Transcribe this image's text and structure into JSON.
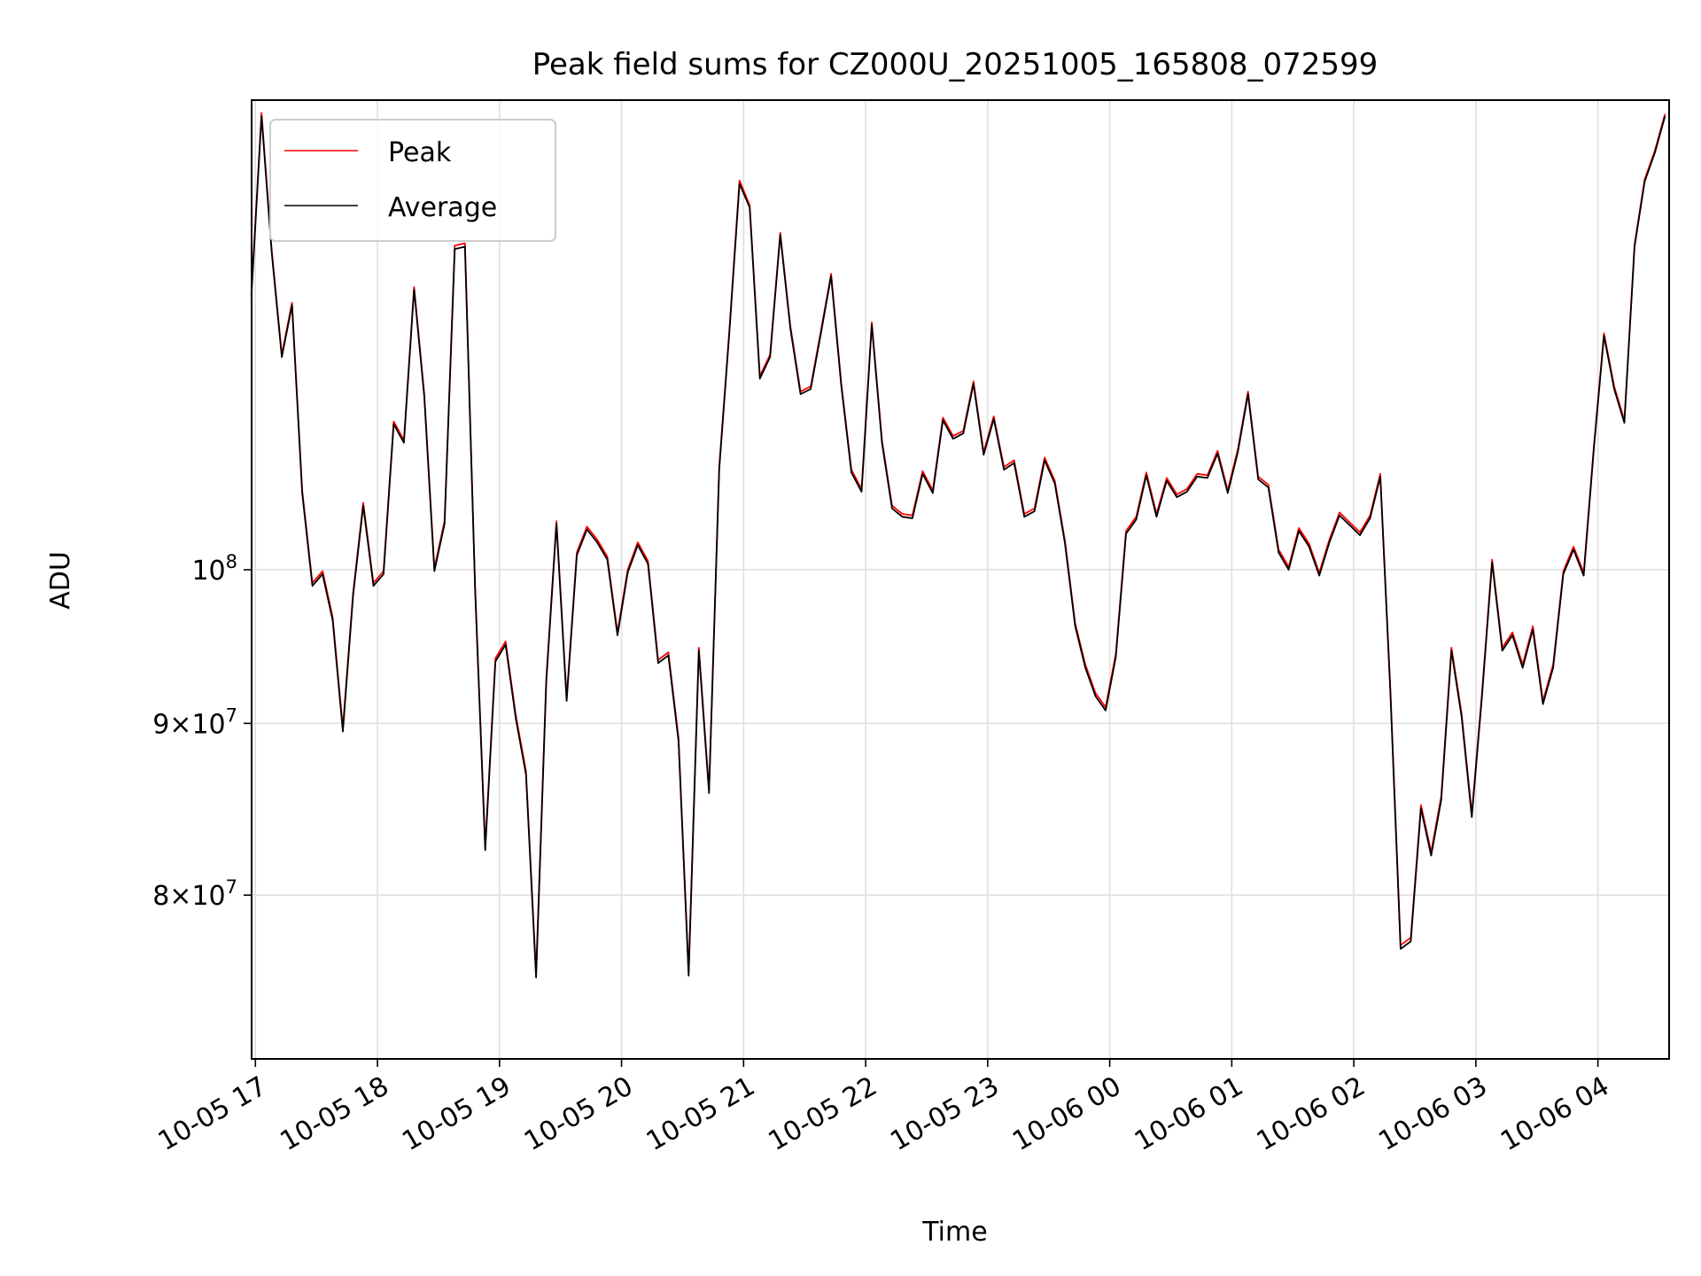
{
  "chart_data": {
    "type": "line",
    "title": "Peak field sums for CZ000U_20251005_165808_072599",
    "xlabel": "Time",
    "ylabel": "ADU",
    "yscale": "log",
    "ylim": [
      71500000,
      138000000
    ],
    "xlim": [
      "2025-10-05T16:58:08",
      "2025-10-06T04:35:00"
    ],
    "grid": true,
    "legend_position": "upper-left",
    "x_ticks": [
      {
        "label": "10-05 17",
        "t": "2025-10-05T17:00:00"
      },
      {
        "label": "10-05 18",
        "t": "2025-10-05T18:00:00"
      },
      {
        "label": "10-05 19",
        "t": "2025-10-05T19:00:00"
      },
      {
        "label": "10-05 20",
        "t": "2025-10-05T20:00:00"
      },
      {
        "label": "10-05 21",
        "t": "2025-10-05T21:00:00"
      },
      {
        "label": "10-05 22",
        "t": "2025-10-05T22:00:00"
      },
      {
        "label": "10-05 23",
        "t": "2025-10-05T23:00:00"
      },
      {
        "label": "10-06 00",
        "t": "2025-10-06T00:00:00"
      },
      {
        "label": "10-06 01",
        "t": "2025-10-06T01:00:00"
      },
      {
        "label": "10-06 02",
        "t": "2025-10-06T02:00:00"
      },
      {
        "label": "10-06 03",
        "t": "2025-10-06T03:00:00"
      },
      {
        "label": "10-06 04",
        "t": "2025-10-06T04:00:00"
      }
    ],
    "y_ticks": [
      {
        "value": 80000000,
        "mantissa": "8",
        "base": "10",
        "exp": "7"
      },
      {
        "value": 90000000,
        "mantissa": "9",
        "base": "10",
        "exp": "7"
      },
      {
        "value": 100000000,
        "mantissa": "",
        "base": "10",
        "exp": "8"
      }
    ],
    "series": [
      {
        "name": "Peak",
        "color": "#ff0000"
      },
      {
        "name": "Average",
        "color": "#000000"
      }
    ],
    "x": [
      "2025-10-05T16:58:00",
      "2025-10-05T17:03:00",
      "2025-10-05T17:08:00",
      "2025-10-05T17:13:00",
      "2025-10-05T17:18:00",
      "2025-10-05T17:23:00",
      "2025-10-05T17:28:00",
      "2025-10-05T17:33:00",
      "2025-10-05T17:38:00",
      "2025-10-05T17:43:00",
      "2025-10-05T17:48:00",
      "2025-10-05T17:53:00",
      "2025-10-05T17:58:00",
      "2025-10-05T18:03:00",
      "2025-10-05T18:08:00",
      "2025-10-05T18:13:00",
      "2025-10-05T18:18:00",
      "2025-10-05T18:23:00",
      "2025-10-05T18:28:00",
      "2025-10-05T18:33:00",
      "2025-10-05T18:38:00",
      "2025-10-05T18:43:00",
      "2025-10-05T18:48:00",
      "2025-10-05T18:53:00",
      "2025-10-05T18:58:00",
      "2025-10-05T19:03:00",
      "2025-10-05T19:08:00",
      "2025-10-05T19:13:00",
      "2025-10-05T19:18:00",
      "2025-10-05T19:23:00",
      "2025-10-05T19:28:00",
      "2025-10-05T19:33:00",
      "2025-10-05T19:38:00",
      "2025-10-05T19:43:00",
      "2025-10-05T19:48:00",
      "2025-10-05T19:53:00",
      "2025-10-05T19:58:00",
      "2025-10-05T20:03:00",
      "2025-10-05T20:08:00",
      "2025-10-05T20:13:00",
      "2025-10-05T20:18:00",
      "2025-10-05T20:23:00",
      "2025-10-05T20:28:00",
      "2025-10-05T20:33:00",
      "2025-10-05T20:38:00",
      "2025-10-05T20:43:00",
      "2025-10-05T20:48:00",
      "2025-10-05T20:53:00",
      "2025-10-05T20:58:00",
      "2025-10-05T21:03:00",
      "2025-10-05T21:08:00",
      "2025-10-05T21:13:00",
      "2025-10-05T21:18:00",
      "2025-10-05T21:23:00",
      "2025-10-05T21:28:00",
      "2025-10-05T21:33:00",
      "2025-10-05T21:38:00",
      "2025-10-05T21:43:00",
      "2025-10-05T21:48:00",
      "2025-10-05T21:53:00",
      "2025-10-05T21:58:00",
      "2025-10-05T22:03:00",
      "2025-10-05T22:08:00",
      "2025-10-05T22:13:00",
      "2025-10-05T22:18:00",
      "2025-10-05T22:23:00",
      "2025-10-05T22:28:00",
      "2025-10-05T22:33:00",
      "2025-10-05T22:38:00",
      "2025-10-05T22:43:00",
      "2025-10-05T22:48:00",
      "2025-10-05T22:53:00",
      "2025-10-05T22:58:00",
      "2025-10-05T23:03:00",
      "2025-10-05T23:08:00",
      "2025-10-05T23:13:00",
      "2025-10-05T23:18:00",
      "2025-10-05T23:23:00",
      "2025-10-05T23:28:00",
      "2025-10-05T23:33:00",
      "2025-10-05T23:38:00",
      "2025-10-05T23:43:00",
      "2025-10-05T23:48:00",
      "2025-10-05T23:53:00",
      "2025-10-05T23:58:00",
      "2025-10-06T00:03:00",
      "2025-10-06T00:08:00",
      "2025-10-06T00:13:00",
      "2025-10-06T00:18:00",
      "2025-10-06T00:23:00",
      "2025-10-06T00:28:00",
      "2025-10-06T00:33:00",
      "2025-10-06T00:38:00",
      "2025-10-06T00:43:00",
      "2025-10-06T00:48:00",
      "2025-10-06T00:53:00",
      "2025-10-06T00:58:00",
      "2025-10-06T01:03:00",
      "2025-10-06T01:08:00",
      "2025-10-06T01:13:00",
      "2025-10-06T01:18:00",
      "2025-10-06T01:23:00",
      "2025-10-06T01:28:00",
      "2025-10-06T01:33:00",
      "2025-10-06T01:38:00",
      "2025-10-06T01:43:00",
      "2025-10-06T01:48:00",
      "2025-10-06T01:53:00",
      "2025-10-06T01:58:00",
      "2025-10-06T02:03:00",
      "2025-10-06T02:08:00",
      "2025-10-06T02:13:00",
      "2025-10-06T02:18:00",
      "2025-10-06T02:23:00",
      "2025-10-06T02:28:00",
      "2025-10-06T02:33:00",
      "2025-10-06T02:38:00",
      "2025-10-06T02:43:00",
      "2025-10-06T02:48:00",
      "2025-10-06T02:53:00",
      "2025-10-06T02:58:00",
      "2025-10-06T03:03:00",
      "2025-10-06T03:08:00",
      "2025-10-06T03:13:00",
      "2025-10-06T03:18:00",
      "2025-10-06T03:23:00",
      "2025-10-06T03:28:00",
      "2025-10-06T03:33:00",
      "2025-10-06T03:38:00",
      "2025-10-06T03:43:00",
      "2025-10-06T03:48:00",
      "2025-10-06T03:53:00",
      "2025-10-06T03:58:00",
      "2025-10-06T04:03:00",
      "2025-10-06T04:08:00",
      "2025-10-06T04:13:00",
      "2025-10-06T04:18:00",
      "2025-10-06T04:23:00",
      "2025-10-06T04:28:00",
      "2025-10-06T04:33:00"
    ],
    "peak_values": [
      120800000,
      136800000,
      124500000,
      115900000,
      120100000,
      105600000,
      99100000,
      99900000,
      96800000,
      89700000,
      98400000,
      104700000,
      99100000,
      99900000,
      110700000,
      109300000,
      121400000,
      112800000,
      100100000,
      103400000,
      124900000,
      125100000,
      98800000,
      82700000,
      94100000,
      95200000,
      90500000,
      87100000,
      75800000,
      92800000,
      103400000,
      91600000,
      101200000,
      103000000,
      102100000,
      100900000,
      95800000,
      100000000,
      101900000,
      100600000,
      94000000,
      94500000,
      89100000,
      75900000,
      94800000,
      86000000,
      107300000,
      117900000,
      130600000,
      128400000,
      114200000,
      115900000,
      126000000,
      118200000,
      113000000,
      113400000,
      117800000,
      122500000,
      113700000,
      107100000,
      105700000,
      118500000,
      109300000,
      104500000,
      103900000,
      103800000,
      107000000,
      105600000,
      111000000,
      109600000,
      110000000,
      113800000,
      108400000,
      111100000,
      107300000,
      107800000,
      103900000,
      104300000,
      108000000,
      106300000,
      102000000,
      96400000,
      93700000,
      91900000,
      91000000,
      94400000,
      102700000,
      103700000,
      106900000,
      103900000,
      106500000,
      105300000,
      105700000,
      106800000,
      106700000,
      108500000,
      105600000,
      108600000,
      113000000,
      106600000,
      106000000,
      101400000,
      100200000,
      102900000,
      101800000,
      99800000,
      102100000,
      104000000,
      103300000,
      102600000,
      103800000,
      106800000,
      92100000,
      77300000,
      77700000,
      85100000,
      82400000,
      85600000,
      94800000,
      90600000,
      84600000,
      91900000,
      100700000,
      94800000,
      95800000,
      93700000,
      96200000,
      91400000,
      93700000,
      99900000,
      101600000,
      99800000,
      108800000,
      117600000,
      113400000,
      110800000,
      125000000,
      130700000,
      133300000,
      136700000
    ],
    "average_values": [
      120600000,
      136500000,
      124300000,
      115700000,
      119900000,
      105400000,
      98900000,
      99700000,
      96600000,
      89500000,
      98200000,
      104500000,
      98900000,
      99700000,
      110500000,
      109100000,
      121200000,
      112600000,
      99900000,
      103200000,
      124600000,
      124800000,
      98600000,
      82500000,
      93900000,
      95000000,
      90300000,
      86900000,
      75600000,
      92600000,
      103200000,
      91400000,
      101000000,
      102800000,
      101900000,
      100700000,
      95600000,
      99800000,
      101700000,
      100400000,
      93800000,
      94300000,
      88900000,
      75700000,
      94600000,
      85800000,
      107100000,
      117700000,
      130300000,
      128200000,
      114000000,
      115700000,
      125800000,
      118000000,
      112800000,
      113200000,
      117600000,
      122300000,
      113500000,
      106900000,
      105500000,
      118300000,
      109100000,
      104300000,
      103700000,
      103600000,
      106800000,
      105400000,
      110800000,
      109400000,
      109800000,
      113600000,
      108200000,
      110900000,
      107100000,
      107600000,
      103700000,
      104100000,
      107800000,
      106100000,
      101800000,
      96200000,
      93500000,
      91700000,
      90800000,
      94200000,
      102500000,
      103500000,
      106700000,
      103700000,
      106300000,
      105100000,
      105500000,
      106600000,
      106500000,
      108300000,
      105400000,
      108400000,
      112800000,
      106400000,
      105800000,
      101200000,
      100000000,
      102700000,
      101600000,
      99600000,
      101900000,
      103800000,
      103100000,
      102400000,
      103600000,
      106600000,
      91900000,
      77100000,
      77500000,
      84900000,
      82200000,
      85400000,
      94600000,
      90400000,
      84400000,
      91700000,
      100500000,
      94600000,
      95600000,
      93500000,
      96000000,
      91200000,
      93500000,
      99700000,
      101400000,
      99600000,
      108600000,
      117400000,
      113200000,
      110600000,
      124800000,
      130500000,
      133100000,
      136500000
    ]
  }
}
